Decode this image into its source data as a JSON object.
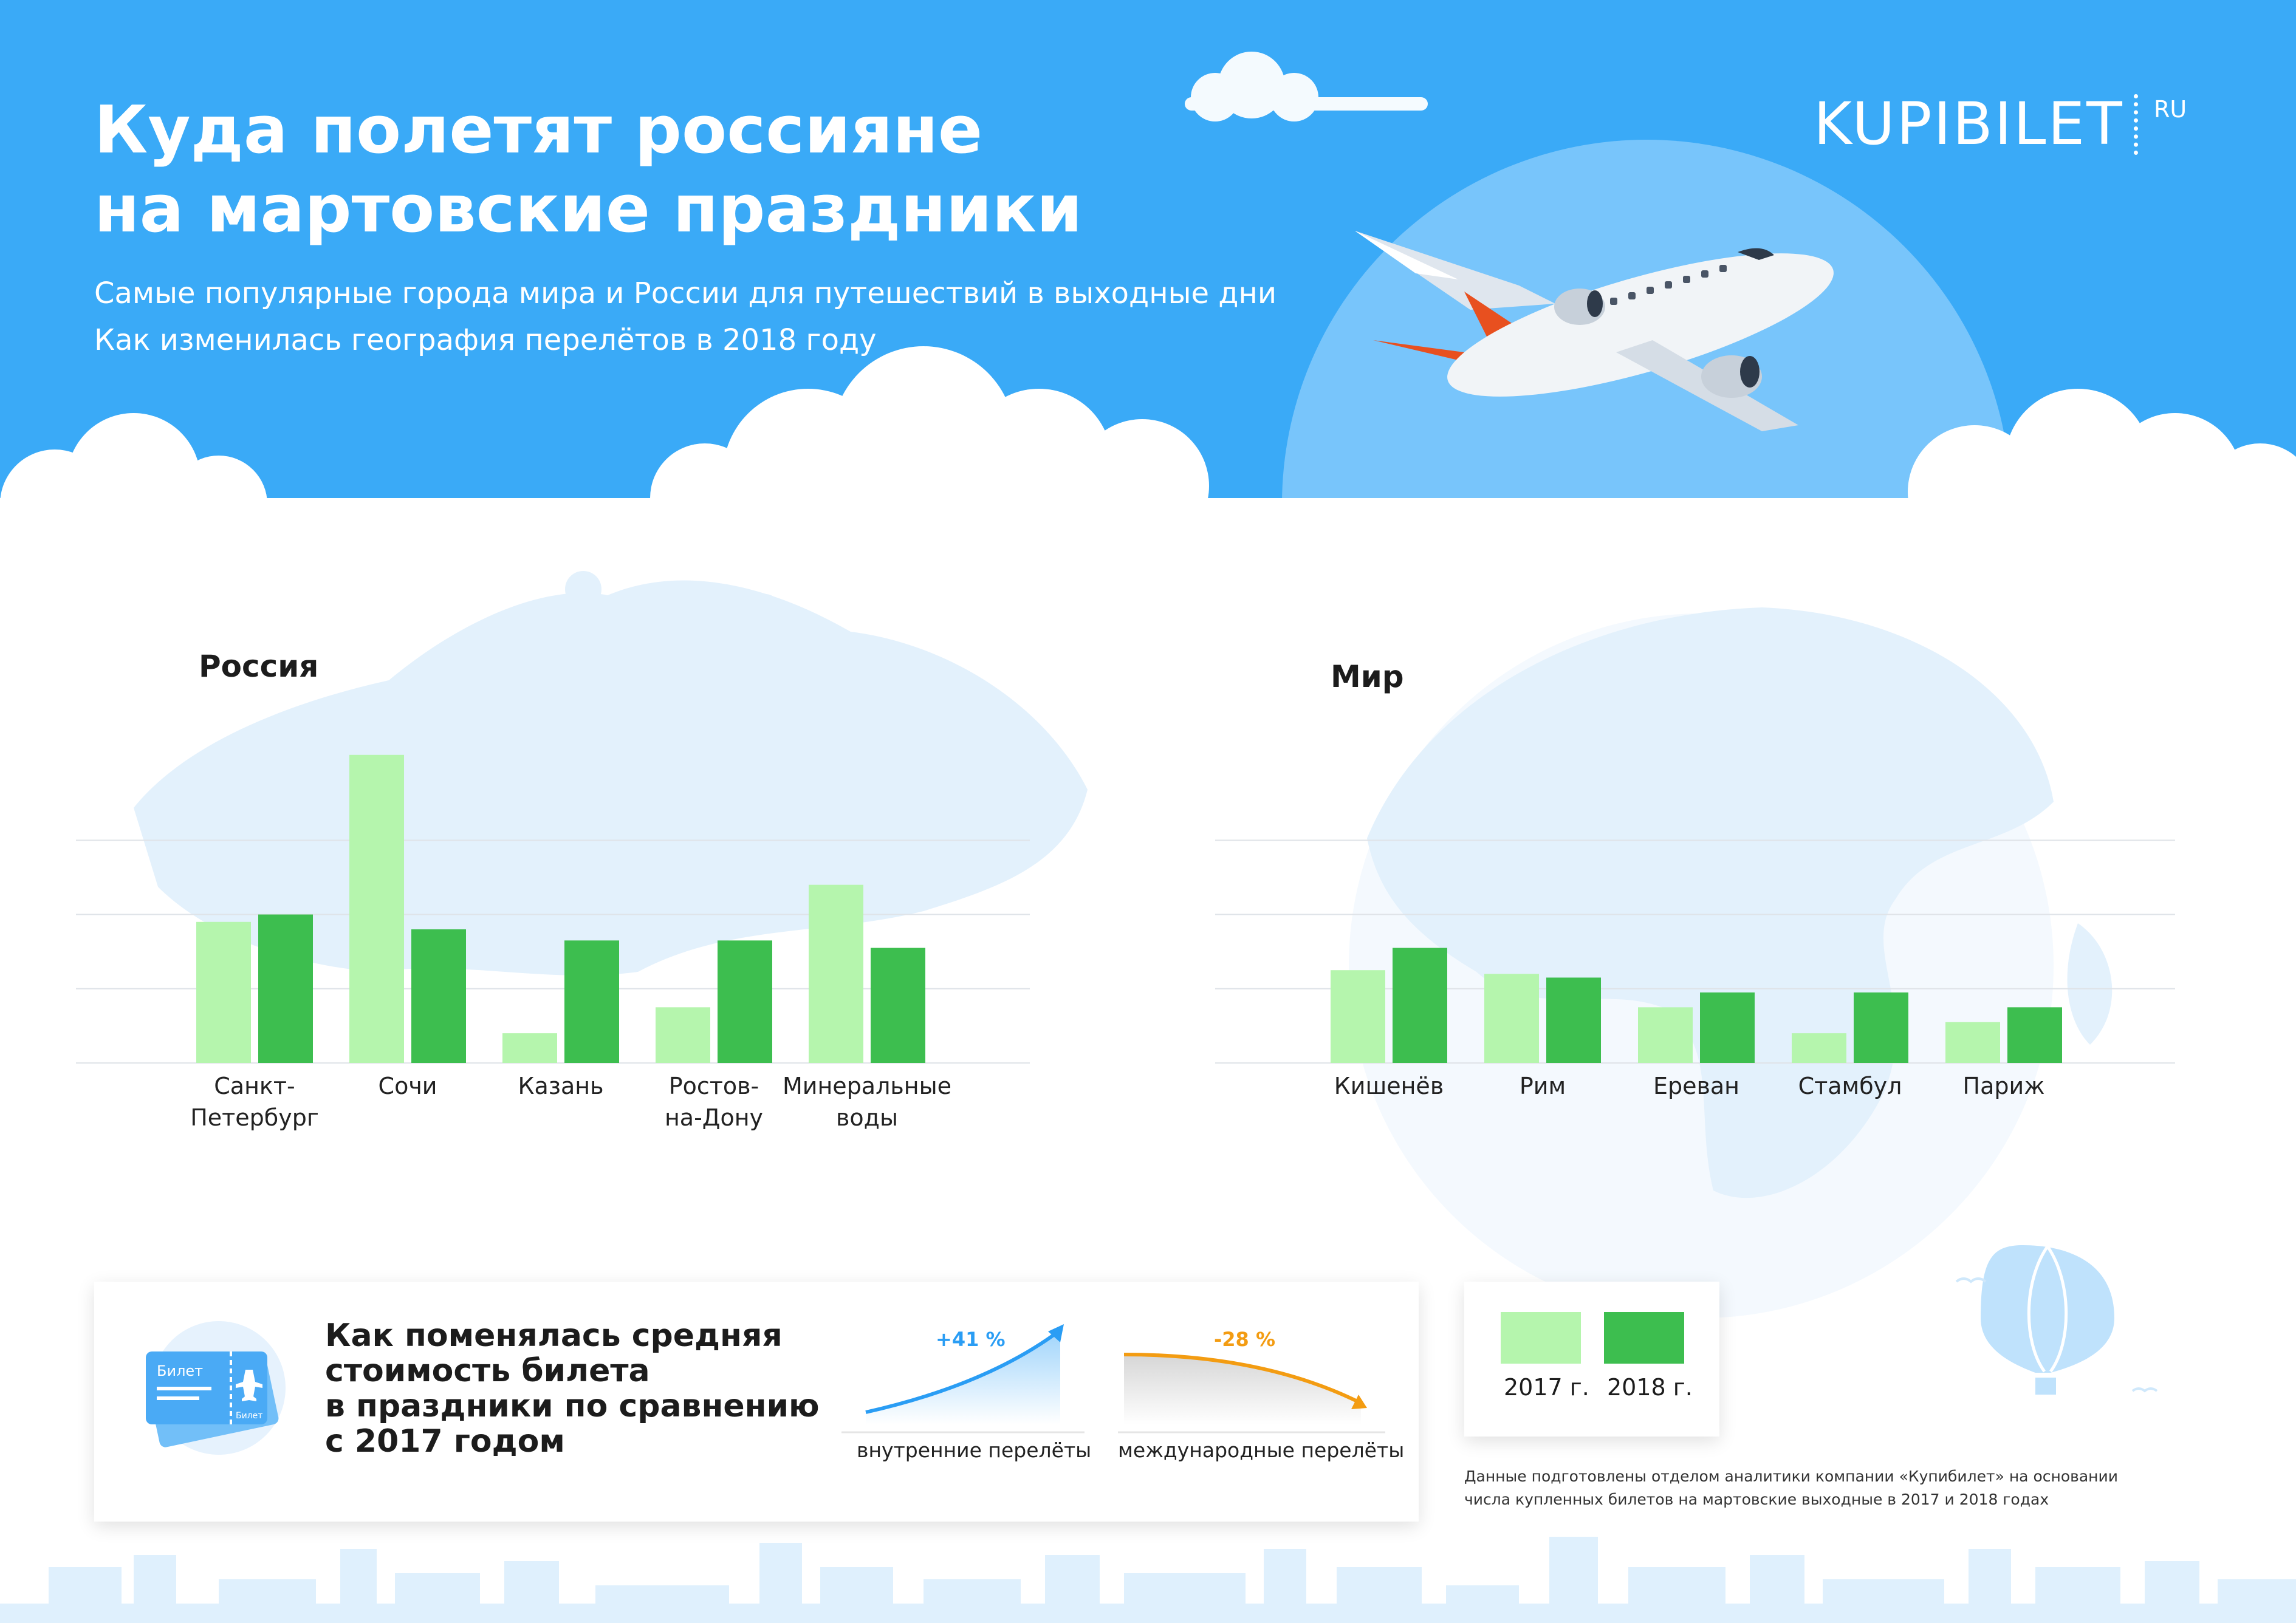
{
  "header": {
    "title_line1": "Куда полетят россияне",
    "title_line2": "на мартовские праздники",
    "subtitle_line1": "Самые популярные города мира и России для путешествий в выходные дни",
    "subtitle_line2": "Как изменилась география перелётов в 2018 году",
    "logo_text": "KUPIBILET",
    "logo_suffix": "RU"
  },
  "colors": {
    "sky": "#3aaaf7",
    "series_2017": "#b5f5ad",
    "series_2018": "#3dbe4f",
    "growth_blue": "#2a9df4",
    "decline_orange": "#f39c12",
    "map": "#e3f1fc"
  },
  "chart_data": [
    {
      "type": "bar",
      "title": "Россия",
      "categories": [
        [
          "Санкт-",
          "Петербург"
        ],
        [
          "Сочи"
        ],
        [
          "Казань"
        ],
        [
          "Ростов-",
          "на-Дону"
        ],
        [
          "Минеральные",
          "воды"
        ]
      ],
      "series": [
        {
          "name": "2017 г.",
          "color": "#b5f5ad",
          "values": [
            38,
            83,
            8,
            15,
            48
          ]
        },
        {
          "name": "2018 г.",
          "color": "#3dbe4f",
          "values": [
            40,
            36,
            33,
            33,
            31
          ]
        }
      ],
      "ylim": [
        0,
        90
      ],
      "gridlines": [
        20,
        40,
        60
      ],
      "grid": true
    },
    {
      "type": "bar",
      "title": "Мир",
      "categories": [
        [
          "Кишенёв"
        ],
        [
          "Рим"
        ],
        [
          "Ереван"
        ],
        [
          "Стамбул"
        ],
        [
          "Париж"
        ]
      ],
      "series": [
        {
          "name": "2017 г.",
          "color": "#b5f5ad",
          "values": [
            25,
            24,
            15,
            8,
            11
          ]
        },
        {
          "name": "2018 г.",
          "color": "#3dbe4f",
          "values": [
            31,
            23,
            19,
            19,
            15
          ]
        }
      ],
      "ylim": [
        0,
        90
      ],
      "gridlines": [
        20,
        40,
        60
      ],
      "grid": true
    }
  ],
  "legend": [
    {
      "label": "2017 г.",
      "color": "#b5f5ad"
    },
    {
      "label": "2018 г.",
      "color": "#3dbe4f"
    }
  ],
  "cost": {
    "title_lines": [
      "Как поменялась средняя",
      "стоимость билета",
      "в праздники по сравнению",
      "с 2017 годом"
    ],
    "ticket_label": "Билет",
    "ticket_stub_label": "Билет",
    "domestic": {
      "change": "+41 %",
      "label": "внутренние перелёты"
    },
    "international": {
      "change": "-28 %",
      "label": "международные перелёты"
    }
  },
  "note_lines": [
    "Данные подготовлены отделом аналитики компании «Купибилет» на основании",
    "числа купленных билетов на мартовские выходные в 2017 и 2018 годах"
  ]
}
